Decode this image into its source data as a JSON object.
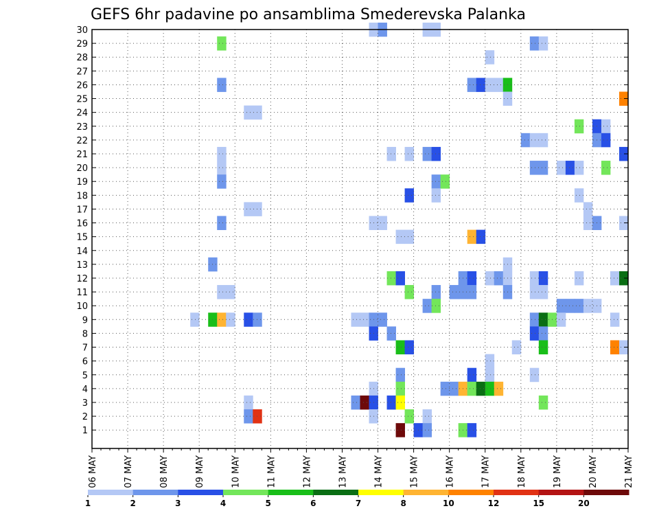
{
  "chart_data": {
    "type": "heatmap",
    "title": "GEFS 6hr padavine po ansamblima Smederevska Palanka",
    "x_ticks": [
      "06 MAY",
      "07 MAY",
      "08 MAY",
      "09 MAY",
      "10 MAY",
      "11 MAY",
      "12 MAY",
      "13 MAY",
      "14 MAY",
      "15 MAY",
      "16 MAY",
      "17 MAY",
      "18 MAY",
      "19 MAY",
      "20 MAY",
      "21 MAY"
    ],
    "y_ticks": [
      "1",
      "2",
      "3",
      "4",
      "5",
      "6",
      "7",
      "8",
      "9",
      "10",
      "11",
      "12",
      "13",
      "14",
      "15",
      "16",
      "17",
      "18",
      "19",
      "20",
      "21",
      "22",
      "23",
      "24",
      "25",
      "26",
      "27",
      "28",
      "29",
      "30"
    ],
    "xlim": [
      "06 MAY",
      "21 MAY"
    ],
    "ylim": [
      0,
      30
    ],
    "x_step": "6 hours",
    "grid": true,
    "legend": {
      "placement": "bottom",
      "labels": [
        "1",
        "2",
        "3",
        "4",
        "5",
        "6",
        "7",
        "8",
        "10",
        "12",
        "15",
        "20"
      ],
      "colors": [
        "#b4c8f5",
        "#6e96eb",
        "#2850e6",
        "#73e65a",
        "#19be19",
        "#0a6e14",
        "#ffff00",
        "#ffb432",
        "#ff8200",
        "#e13214",
        "#b41414",
        "#6e0a0a"
      ]
    },
    "cells": [
      [
        "13.75",
        30,
        "#b4c8f5"
      ],
      [
        "14",
        30,
        "#6e96eb"
      ],
      [
        "15.25",
        30,
        "#b4c8f5"
      ],
      [
        "15.5",
        30,
        "#b4c8f5"
      ],
      [
        "09.5",
        29,
        "#73e65a"
      ],
      [
        "18.25",
        29,
        "#6e96eb"
      ],
      [
        "18.5",
        29,
        "#b4c8f5"
      ],
      [
        "17",
        28,
        "#b4c8f5"
      ],
      [
        "09.5",
        26,
        "#6e96eb"
      ],
      [
        "16.5",
        26,
        "#6e96eb"
      ],
      [
        "16.75",
        26,
        "#2850e6"
      ],
      [
        "17",
        26,
        "#b4c8f5"
      ],
      [
        "17.25",
        26,
        "#b4c8f5"
      ],
      [
        "17.5",
        26,
        "#19be19"
      ],
      [
        "17.5",
        25,
        "#b4c8f5"
      ],
      [
        "20.75",
        25,
        "#ff8200"
      ],
      [
        "10.25",
        24,
        "#b4c8f5"
      ],
      [
        "10.5",
        24,
        "#b4c8f5"
      ],
      [
        "19.5",
        23,
        "#73e65a"
      ],
      [
        "20",
        23,
        "#2850e6"
      ],
      [
        "20.25",
        23,
        "#b4c8f5"
      ],
      [
        "18",
        22,
        "#6e96eb"
      ],
      [
        "18.25",
        22,
        "#b4c8f5"
      ],
      [
        "18.5",
        22,
        "#b4c8f5"
      ],
      [
        "20",
        22,
        "#6e96eb"
      ],
      [
        "20.25",
        22,
        "#2850e6"
      ],
      [
        "09.5",
        21,
        "#b4c8f5"
      ],
      [
        "14.25",
        21,
        "#b4c8f5"
      ],
      [
        "14.75",
        21,
        "#b4c8f5"
      ],
      [
        "15.25",
        21,
        "#6e96eb"
      ],
      [
        "15.5",
        21,
        "#2850e6"
      ],
      [
        "20.75",
        21,
        "#2850e6"
      ],
      [
        "09.5",
        20,
        "#b4c8f5"
      ],
      [
        "18.25",
        20,
        "#6e96eb"
      ],
      [
        "18.5",
        20,
        "#6e96eb"
      ],
      [
        "19",
        20,
        "#b4c8f5"
      ],
      [
        "19.25",
        20,
        "#2850e6"
      ],
      [
        "19.5",
        20,
        "#b4c8f5"
      ],
      [
        "20.25",
        20,
        "#73e65a"
      ],
      [
        "09.5",
        19,
        "#6e96eb"
      ],
      [
        "15.5",
        19,
        "#6e96eb"
      ],
      [
        "15.75",
        19,
        "#73e65a"
      ],
      [
        "14.75",
        18,
        "#2850e6"
      ],
      [
        "15.5",
        18,
        "#b4c8f5"
      ],
      [
        "19.5",
        18,
        "#b4c8f5"
      ],
      [
        "10.25",
        17,
        "#b4c8f5"
      ],
      [
        "10.5",
        17,
        "#b4c8f5"
      ],
      [
        "19.75",
        17,
        "#b4c8f5"
      ],
      [
        "09.5",
        16,
        "#6e96eb"
      ],
      [
        "13.75",
        16,
        "#b4c8f5"
      ],
      [
        "14",
        16,
        "#b4c8f5"
      ],
      [
        "19.75",
        16,
        "#b4c8f5"
      ],
      [
        "20",
        16,
        "#6e96eb"
      ],
      [
        "20.75",
        16,
        "#b4c8f5"
      ],
      [
        "14.5",
        15,
        "#b4c8f5"
      ],
      [
        "14.75",
        15,
        "#b4c8f5"
      ],
      [
        "16.5",
        15,
        "#ffb432"
      ],
      [
        "16.75",
        15,
        "#2850e6"
      ],
      [
        "09.25",
        13,
        "#6e96eb"
      ],
      [
        "17.5",
        13,
        "#b4c8f5"
      ],
      [
        "14.25",
        12,
        "#73e65a"
      ],
      [
        "14.5",
        12,
        "#2850e6"
      ],
      [
        "16.25",
        12,
        "#6e96eb"
      ],
      [
        "16.5",
        12,
        "#2850e6"
      ],
      [
        "17",
        12,
        "#b4c8f5"
      ],
      [
        "17.25",
        12,
        "#6e96eb"
      ],
      [
        "17.5",
        12,
        "#b4c8f5"
      ],
      [
        "18.25",
        12,
        "#b4c8f5"
      ],
      [
        "18.5",
        12,
        "#2850e6"
      ],
      [
        "19.5",
        12,
        "#b4c8f5"
      ],
      [
        "20.5",
        12,
        "#b4c8f5"
      ],
      [
        "20.75",
        12,
        "#0a6e14"
      ],
      [
        "09.5",
        11,
        "#b4c8f5"
      ],
      [
        "09.75",
        11,
        "#b4c8f5"
      ],
      [
        "14.75",
        11,
        "#73e65a"
      ],
      [
        "15.5",
        11,
        "#6e96eb"
      ],
      [
        "16",
        11,
        "#6e96eb"
      ],
      [
        "16.25",
        11,
        "#6e96eb"
      ],
      [
        "16.5",
        11,
        "#6e96eb"
      ],
      [
        "17.5",
        11,
        "#6e96eb"
      ],
      [
        "18.25",
        11,
        "#b4c8f5"
      ],
      [
        "18.5",
        11,
        "#b4c8f5"
      ],
      [
        "15.25",
        10,
        "#6e96eb"
      ],
      [
        "15.5",
        10,
        "#73e65a"
      ],
      [
        "19",
        10,
        "#6e96eb"
      ],
      [
        "19.25",
        10,
        "#6e96eb"
      ],
      [
        "19.5",
        10,
        "#6e96eb"
      ],
      [
        "19.75",
        10,
        "#b4c8f5"
      ],
      [
        "20",
        10,
        "#b4c8f5"
      ],
      [
        "08.75",
        9,
        "#b4c8f5"
      ],
      [
        "09.25",
        9,
        "#19be19"
      ],
      [
        "09.5",
        9,
        "#ffb432"
      ],
      [
        "09.75",
        9,
        "#b4c8f5"
      ],
      [
        "10.25",
        9,
        "#2850e6"
      ],
      [
        "10.5",
        9,
        "#6e96eb"
      ],
      [
        "13.25",
        9,
        "#b4c8f5"
      ],
      [
        "13.5",
        9,
        "#b4c8f5"
      ],
      [
        "13.75",
        9,
        "#6e96eb"
      ],
      [
        "14",
        9,
        "#6e96eb"
      ],
      [
        "18.25",
        9,
        "#6e96eb"
      ],
      [
        "18.5",
        9,
        "#0a6e14"
      ],
      [
        "18.75",
        9,
        "#73e65a"
      ],
      [
        "19",
        9,
        "#b4c8f5"
      ],
      [
        "20.5",
        9,
        "#b4c8f5"
      ],
      [
        "13.75",
        8,
        "#2850e6"
      ],
      [
        "14.25",
        8,
        "#6e96eb"
      ],
      [
        "18.25",
        8,
        "#2850e6"
      ],
      [
        "18.5",
        8,
        "#6e96eb"
      ],
      [
        "14.5",
        7,
        "#19be19"
      ],
      [
        "14.75",
        7,
        "#2850e6"
      ],
      [
        "17.75",
        7,
        "#b4c8f5"
      ],
      [
        "18.5",
        7,
        "#19be19"
      ],
      [
        "20.5",
        7,
        "#ff8200"
      ],
      [
        "20.75",
        7,
        "#b4c8f5"
      ],
      [
        "17",
        6,
        "#b4c8f5"
      ],
      [
        "14.5",
        5,
        "#6e96eb"
      ],
      [
        "16.5",
        5,
        "#2850e6"
      ],
      [
        "17",
        5,
        "#b4c8f5"
      ],
      [
        "18.25",
        5,
        "#b4c8f5"
      ],
      [
        "13.75",
        4,
        "#b4c8f5"
      ],
      [
        "14.5",
        4,
        "#73e65a"
      ],
      [
        "15.75",
        4,
        "#6e96eb"
      ],
      [
        "16",
        4,
        "#6e96eb"
      ],
      [
        "16.25",
        4,
        "#ffb432"
      ],
      [
        "16.5",
        4,
        "#73e65a"
      ],
      [
        "16.75",
        4,
        "#0a6e14"
      ],
      [
        "17",
        4,
        "#19be19"
      ],
      [
        "17.25",
        4,
        "#ffb432"
      ],
      [
        "10.25",
        3,
        "#b4c8f5"
      ],
      [
        "13.25",
        3,
        "#6e96eb"
      ],
      [
        "13.5",
        3,
        "#6e0a0a"
      ],
      [
        "13.75",
        3,
        "#2850e6"
      ],
      [
        "14.25",
        3,
        "#2850e6"
      ],
      [
        "14.5",
        3,
        "#ffff00"
      ],
      [
        "18.5",
        3,
        "#73e65a"
      ],
      [
        "10.25",
        2,
        "#6e96eb"
      ],
      [
        "10.5",
        2,
        "#e13214"
      ],
      [
        "13.75",
        2,
        "#b4c8f5"
      ],
      [
        "14.75",
        2,
        "#73e65a"
      ],
      [
        "15.25",
        2,
        "#b4c8f5"
      ],
      [
        "14.5",
        1,
        "#6e0a0a"
      ],
      [
        "15",
        1,
        "#2850e6"
      ],
      [
        "15.25",
        1,
        "#6e96eb"
      ],
      [
        "16.25",
        1,
        "#73e65a"
      ],
      [
        "16.5",
        1,
        "#2850e6"
      ]
    ]
  }
}
